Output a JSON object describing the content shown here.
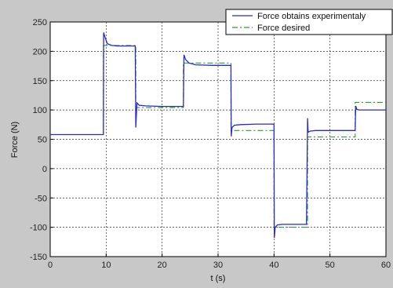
{
  "chart_data": {
    "type": "line",
    "title": "",
    "xlabel": "t (s)",
    "ylabel": "Force (N)",
    "xlim": [
      0,
      60
    ],
    "ylim": [
      -150,
      250
    ],
    "xticks": [
      0,
      10,
      20,
      30,
      40,
      50,
      60
    ],
    "yticks": [
      -150,
      -100,
      -50,
      0,
      50,
      100,
      150,
      200,
      250
    ],
    "grid": true,
    "legend_position": "top-right",
    "series": [
      {
        "name": "Force obtains experimentaly",
        "color": "#2a2acc",
        "style": "solid",
        "x": [
          0,
          9.5,
          9.55,
          9.8,
          10.2,
          11,
          12,
          13.5,
          15.2,
          15.3,
          15.5,
          15.9,
          17,
          20,
          23.8,
          23.9,
          24.2,
          24.8,
          26,
          29,
          32.3,
          32.35,
          32.5,
          32.9,
          34,
          37,
          40,
          40.05,
          40.2,
          40.6,
          41.5,
          44,
          45.8,
          46,
          46.1,
          46.5,
          47.5,
          51,
          54.5,
          54.6,
          54.8,
          55.2,
          56.5,
          60
        ],
        "y": [
          58,
          58,
          232,
          224,
          213,
          210,
          209,
          209,
          209,
          70,
          112,
          108,
          107,
          106,
          106,
          194,
          186,
          180,
          177,
          176,
          176,
          55,
          70,
          74,
          75,
          76,
          76,
          -118,
          -100,
          -96,
          -95,
          -95,
          -95,
          86,
          62,
          64,
          65,
          65,
          65,
          107,
          101,
          100,
          100,
          100
        ]
      },
      {
        "name": "Force desired",
        "color": "#2e9e2e",
        "style": "dashdot",
        "x": [
          0,
          9.5,
          9.5,
          15.3,
          15.3,
          23.8,
          23.8,
          32.3,
          32.3,
          40,
          40,
          46,
          46,
          54.5,
          54.5,
          60
        ],
        "y": [
          58,
          58,
          210,
          210,
          104,
          104,
          180,
          180,
          65,
          65,
          -100,
          -100,
          54,
          54,
          113,
          113
        ]
      }
    ]
  }
}
